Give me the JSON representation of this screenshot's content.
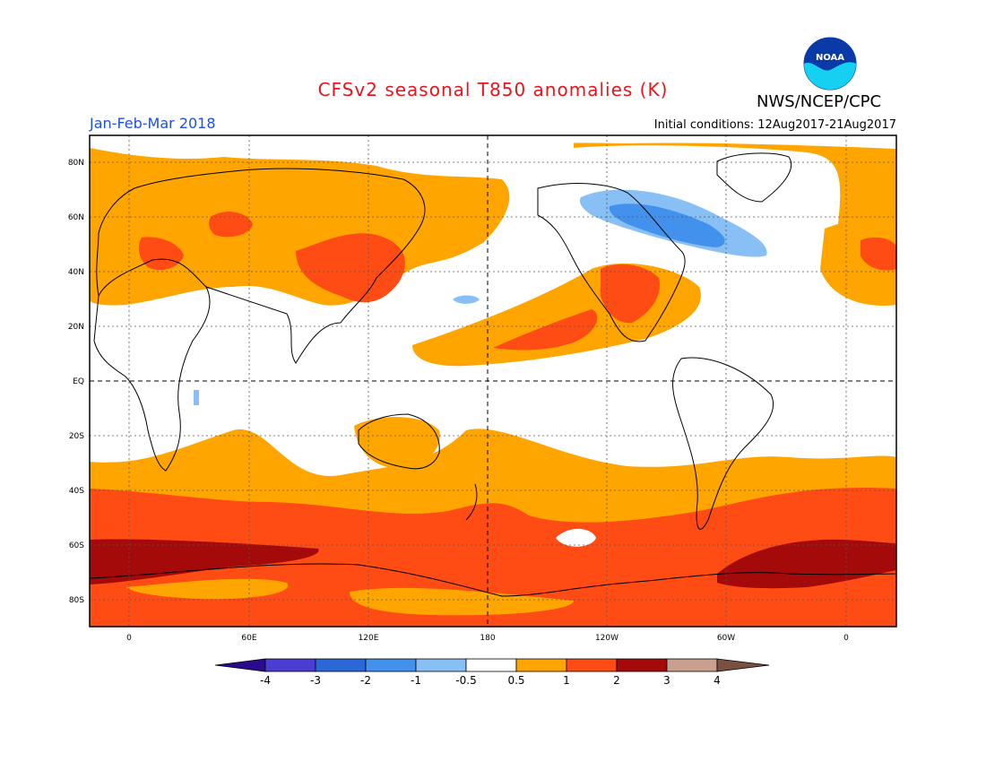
{
  "header": {
    "title": "CFSv2 seasonal T850 anomalies (K)",
    "org": "NWS/NCEP/CPC",
    "period": "Jan-Feb-Mar 2018",
    "initial_conditions": "Initial conditions: 12Aug2017-21Aug2017",
    "logo_text": "NOAA"
  },
  "map": {
    "lat_labels": [
      "80N",
      "60N",
      "40N",
      "20N",
      "EQ",
      "20S",
      "40S",
      "60S",
      "80S"
    ],
    "lon_labels": [
      "0",
      "60E",
      "120E",
      "180",
      "120W",
      "60W",
      "0"
    ],
    "gridlines": "dotted",
    "reference_lines": [
      "EQ",
      "180"
    ]
  },
  "colorbar": {
    "labels": [
      "-4",
      "-3",
      "-2",
      "-1",
      "-0.5",
      "0.5",
      "1",
      "2",
      "3",
      "4"
    ],
    "colors": [
      "#2b0a8e",
      "#4a3ed2",
      "#2a68d8",
      "#4291ec",
      "#88c0f5",
      "#ffffff",
      "#ffa500",
      "#ff4b14",
      "#a50a0a",
      "#c9a08f",
      "#7a5040"
    ]
  },
  "chart_data": {
    "type": "heatmap",
    "variable": "T850 anomalies",
    "units": "K",
    "levels": [
      -4,
      -3,
      -2,
      -1,
      -0.5,
      0.5,
      1,
      2,
      3,
      4
    ],
    "regions": [
      {
        "name": "Southern Ocean belt",
        "range": "2 to 3"
      },
      {
        "name": "Southern Ocean core near 60S",
        "range": "3 to 4"
      },
      {
        "name": "Antarctica",
        "range": "1 to 2"
      },
      {
        "name": "Central Asia",
        "range": "1 to 2"
      },
      {
        "name": "Eastern Europe",
        "range": "1 to 2"
      },
      {
        "name": "Western Europe / Mediterranean",
        "range": "1 to 2"
      },
      {
        "name": "Subtropical North Pacific",
        "range": "1 to 2"
      },
      {
        "name": "Southwestern North America / Mexico",
        "range": "1 to 2"
      },
      {
        "name": "Eastern Canada / Hudson Bay",
        "range": "-2 to -0.5"
      },
      {
        "name": "Mid North Pacific patch",
        "range": "-1 to -0.5"
      },
      {
        "name": "East Africa lakes",
        "range": "-1 to -0.5"
      },
      {
        "name": "Australia",
        "range": "0.5 to 1"
      },
      {
        "name": "Arctic / North Atlantic",
        "range": "0.5 to 1"
      }
    ]
  }
}
